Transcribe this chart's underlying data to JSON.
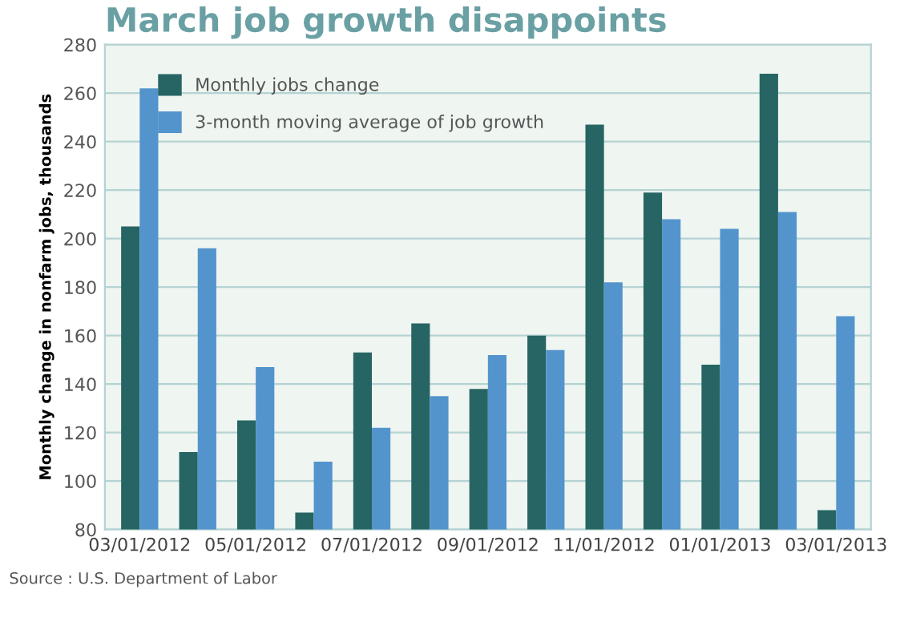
{
  "chart_data": {
    "type": "bar",
    "title": "March job growth disappoints",
    "ylabel": "Monthly change in nonfarm jobs, thousands",
    "categories": [
      "03/01/2012",
      null,
      "05/01/2012",
      null,
      "07/01/2012",
      null,
      "09/01/2012",
      null,
      "11/01/2012",
      null,
      "01/01/2013",
      null,
      "03/01/2013"
    ],
    "series": [
      {
        "name": "Monthly jobs change",
        "color": "#266563",
        "values": [
          205,
          112,
          125,
          87,
          153,
          165,
          138,
          160,
          247,
          219,
          148,
          268,
          88
        ]
      },
      {
        "name": "3-month moving average of job growth",
        "color": "#5394cd",
        "values": [
          262,
          196,
          147,
          108,
          122,
          135,
          152,
          154,
          182,
          208,
          204,
          211,
          168
        ]
      }
    ],
    "ylim": [
      80,
      280
    ],
    "yticks": [
      80,
      100,
      120,
      140,
      160,
      180,
      200,
      220,
      240,
      260,
      280
    ],
    "grid": "y",
    "legend": "top left",
    "annotations": [
      "Source : U.S. Department of Labor"
    ]
  }
}
